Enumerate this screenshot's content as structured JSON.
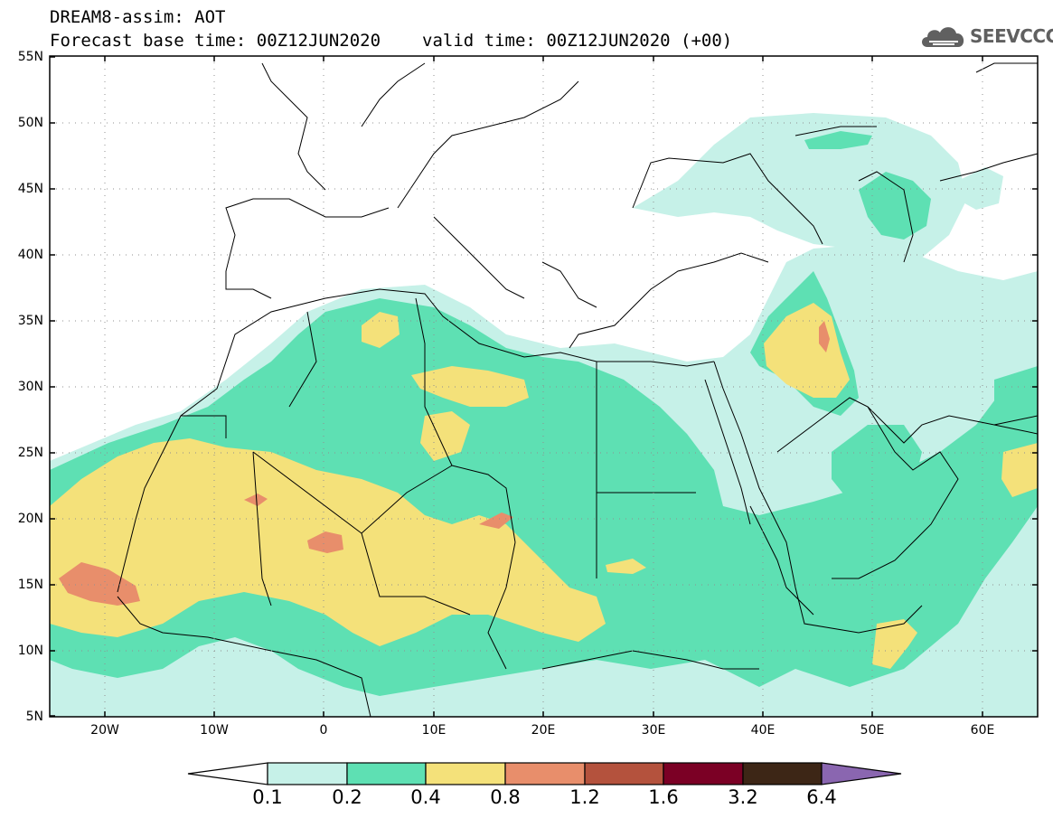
{
  "header": {
    "title": "DREAM8-assim: AOT",
    "base_label": "Forecast base time: 00Z12JUN2020",
    "valid_label": "valid time: 00Z12JUN2020 (+00)"
  },
  "logo": {
    "text": "SEEVCCC",
    "icon": "cloud-icon"
  },
  "map": {
    "lat_labels": [
      "55N",
      "50N",
      "45N",
      "40N",
      "35N",
      "30N",
      "25N",
      "20N",
      "15N",
      "10N",
      "5N"
    ],
    "lon_labels": [
      "20W",
      "10W",
      "0",
      "10E",
      "20E",
      "30E",
      "40E",
      "50E",
      "60E"
    ],
    "lat_range": [
      5,
      55
    ],
    "lon_range": [
      -25,
      65
    ],
    "grid": "dotted"
  },
  "colorbar": {
    "labels": [
      "0.1",
      "0.2",
      "0.4",
      "0.8",
      "1.2",
      "1.6",
      "3.2",
      "6.4"
    ],
    "colors": [
      "#ffffff",
      "#c6f1e8",
      "#5ee0b3",
      "#f4e17a",
      "#e88e6b",
      "#b4523d",
      "#7b0025",
      "#3d2616",
      "#8a66b0"
    ]
  },
  "colors": {
    "level1": "#c6f1e8",
    "level2": "#5ee0b3",
    "level3": "#f4e17a",
    "level4": "#e88e6b",
    "coast": "#000000"
  }
}
